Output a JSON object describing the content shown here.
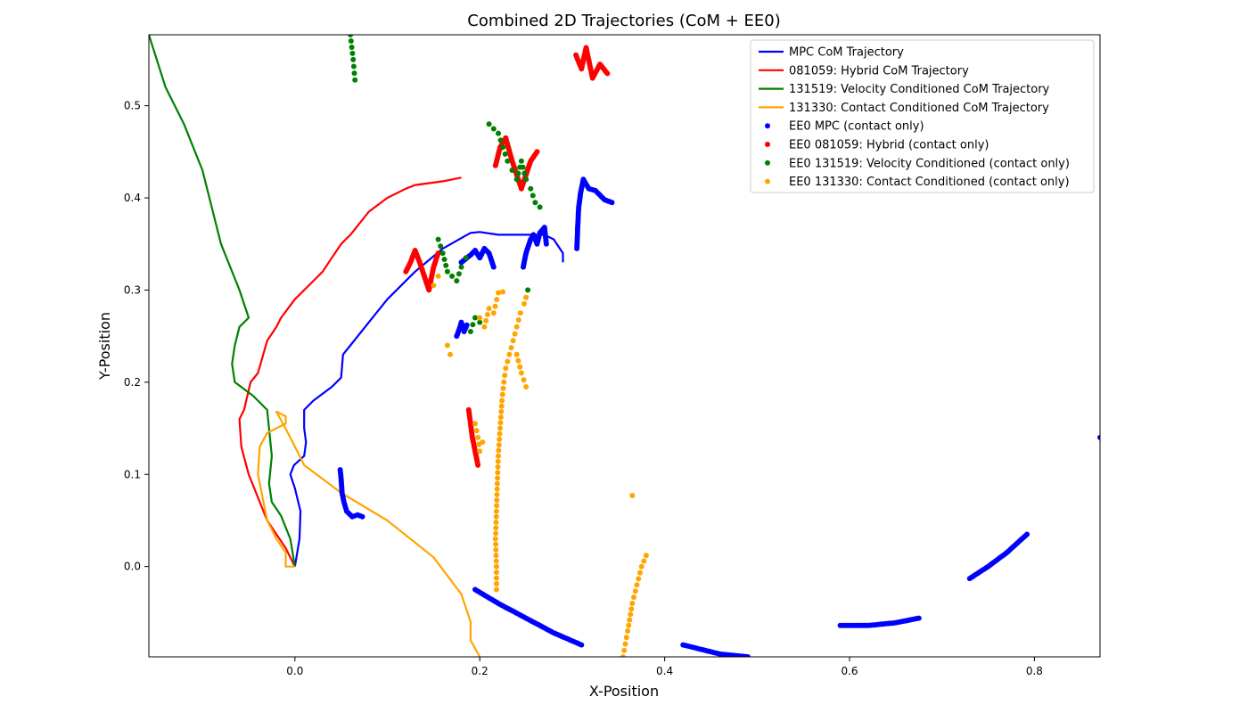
{
  "chart_data": {
    "type": "line",
    "title": "Combined 2D Trajectories (CoM + EE0)",
    "xlabel": "X-Position",
    "ylabel": "Y-Position",
    "xlim": [
      -0.158,
      0.871
    ],
    "ylim": [
      -0.098,
      0.577
    ],
    "xticks": [
      0.0,
      0.2,
      0.4,
      0.6,
      0.8
    ],
    "xtick_labels": [
      "0.0",
      "0.2",
      "0.4",
      "0.6",
      "0.8"
    ],
    "yticks": [
      0.0,
      0.1,
      0.2,
      0.3,
      0.4,
      0.5
    ],
    "ytick_labels": [
      "0.0",
      "0.1",
      "0.2",
      "0.3",
      "0.4",
      "0.5"
    ],
    "grid": false,
    "legend_position": "top-right",
    "line_series": [
      {
        "name": "MPC CoM Trajectory",
        "color": "#0000ff",
        "x": [
          0.0,
          0.005,
          0.006,
          0.0,
          -0.005,
          -0.001,
          0.01,
          0.012,
          0.01,
          0.01,
          0.02,
          0.04,
          0.05,
          0.052,
          0.06,
          0.08,
          0.1,
          0.13,
          0.16,
          0.19,
          0.2,
          0.22,
          0.25,
          0.27,
          0.28,
          0.29,
          0.29
        ],
        "y": [
          0.0,
          0.03,
          0.06,
          0.085,
          0.1,
          0.11,
          0.12,
          0.135,
          0.15,
          0.17,
          0.18,
          0.195,
          0.205,
          0.23,
          0.24,
          0.265,
          0.29,
          0.32,
          0.345,
          0.362,
          0.363,
          0.36,
          0.36,
          0.36,
          0.355,
          0.34,
          0.33
        ]
      },
      {
        "name": "081059: Hybrid CoM Trajectory",
        "color": "#ff0000",
        "x": [
          0.0,
          -0.01,
          -0.03,
          -0.05,
          -0.058,
          -0.06,
          -0.055,
          -0.048,
          -0.04,
          -0.03,
          -0.02,
          -0.015,
          0.0,
          0.02,
          0.03,
          0.04,
          0.05,
          0.06,
          0.08,
          0.1,
          0.12,
          0.13,
          0.16,
          0.18
        ],
        "y": [
          0.0,
          0.02,
          0.05,
          0.1,
          0.13,
          0.16,
          0.17,
          0.2,
          0.21,
          0.245,
          0.26,
          0.27,
          0.29,
          0.31,
          0.32,
          0.335,
          0.35,
          0.36,
          0.385,
          0.4,
          0.41,
          0.414,
          0.418,
          0.422
        ]
      },
      {
        "name": "131519: Velocity Conditioned CoM Trajectory",
        "color": "#008000",
        "x": [
          0.0,
          -0.005,
          -0.015,
          -0.025,
          -0.028,
          -0.025,
          -0.03,
          -0.045,
          -0.065,
          -0.068,
          -0.065,
          -0.06,
          -0.05,
          -0.06,
          -0.08,
          -0.09,
          -0.1,
          -0.12,
          -0.14,
          -0.158
        ],
        "y": [
          0.0,
          0.03,
          0.055,
          0.07,
          0.09,
          0.12,
          0.17,
          0.185,
          0.2,
          0.22,
          0.24,
          0.26,
          0.27,
          0.3,
          0.35,
          0.39,
          0.43,
          0.48,
          0.52,
          0.577
        ]
      },
      {
        "name": "131330: Contact Conditioned CoM Trajectory",
        "color": "#ffa500",
        "x": [
          0.0,
          -0.01,
          -0.01,
          -0.02,
          -0.03,
          -0.04,
          -0.038,
          -0.03,
          -0.02,
          -0.01,
          -0.01,
          -0.02,
          -0.005,
          0.01,
          0.05,
          0.1,
          0.15,
          0.18,
          0.19,
          0.19,
          0.2
        ],
        "y": [
          0.0,
          0.0,
          0.015,
          0.03,
          0.05,
          0.1,
          0.13,
          0.145,
          0.15,
          0.155,
          0.163,
          0.168,
          0.14,
          0.11,
          0.08,
          0.05,
          0.01,
          -0.03,
          -0.06,
          -0.08,
          -0.098
        ]
      }
    ],
    "scatter_series": [
      {
        "name": "EE0 MPC (contact only)",
        "color": "#0000ff",
        "clusters": [
          {
            "x": [
              0.049,
              0.05,
              0.051,
              0.053,
              0.056,
              0.062,
              0.068,
              0.073
            ],
            "y": [
              0.105,
              0.095,
              0.08,
              0.07,
              0.06,
              0.054,
              0.056,
              0.054
            ]
          },
          {
            "x": [
              0.175,
              0.178,
              0.18,
              0.183,
              0.186
            ],
            "y": [
              0.25,
              0.258,
              0.265,
              0.255,
              0.262
            ]
          },
          {
            "x": [
              0.18,
              0.19,
              0.195,
              0.2,
              0.205,
              0.21,
              0.215
            ],
            "y": [
              0.33,
              0.338,
              0.343,
              0.335,
              0.345,
              0.34,
              0.325
            ]
          },
          {
            "x": [
              0.247,
              0.25,
              0.255,
              0.258,
              0.262,
              0.265,
              0.27,
              0.272
            ],
            "y": [
              0.325,
              0.34,
              0.355,
              0.36,
              0.35,
              0.362,
              0.368,
              0.35
            ]
          },
          {
            "x": [
              0.305,
              0.306,
              0.307,
              0.309,
              0.312,
              0.318,
              0.325,
              0.335,
              0.343
            ],
            "y": [
              0.345,
              0.37,
              0.39,
              0.405,
              0.42,
              0.41,
              0.408,
              0.398,
              0.395
            ]
          },
          {
            "x": [
              0.195,
              0.22,
              0.25,
              0.28,
              0.31
            ],
            "y": [
              -0.025,
              -0.04,
              -0.056,
              -0.072,
              -0.085
            ]
          },
          {
            "x": [
              0.42,
              0.44,
              0.46,
              0.49
            ],
            "y": [
              -0.085,
              -0.09,
              -0.095,
              -0.098
            ]
          },
          {
            "x": [
              0.59,
              0.62,
              0.65,
              0.675
            ],
            "y": [
              -0.064,
              -0.064,
              -0.061,
              -0.056
            ]
          },
          {
            "x": [
              0.73,
              0.75,
              0.77,
              0.792
            ],
            "y": [
              -0.013,
              0.0,
              0.015,
              0.035
            ]
          },
          {
            "x": [
              0.871
            ],
            "y": [
              0.14
            ]
          }
        ]
      },
      {
        "name": "EE0 081059: Hybrid (contact only)",
        "color": "#ff0000",
        "clusters": [
          {
            "x": [
              0.12,
              0.125,
              0.13,
              0.135,
              0.14,
              0.145,
              0.15,
              0.155
            ],
            "y": [
              0.32,
              0.33,
              0.343,
              0.33,
              0.315,
              0.3,
              0.325,
              0.34
            ]
          },
          {
            "x": [
              0.188,
              0.19,
              0.192,
              0.195,
              0.198
            ],
            "y": [
              0.17,
              0.155,
              0.14,
              0.125,
              0.11
            ]
          },
          {
            "x": [
              0.217,
              0.222,
              0.228,
              0.235,
              0.24,
              0.245,
              0.255,
              0.262
            ],
            "y": [
              0.435,
              0.455,
              0.465,
              0.44,
              0.425,
              0.41,
              0.44,
              0.45
            ]
          },
          {
            "x": [
              0.304,
              0.31,
              0.315,
              0.322,
              0.33,
              0.338
            ],
            "y": [
              0.555,
              0.54,
              0.563,
              0.53,
              0.545,
              0.535
            ]
          }
        ]
      },
      {
        "name": "EE0 131519: Velocity Conditioned (contact only)",
        "color": "#008000",
        "x": [
          0.06,
          0.063,
          0.065,
          0.155,
          0.16,
          0.165,
          0.175,
          0.18,
          0.185,
          0.19,
          0.195,
          0.2,
          0.21,
          0.22,
          0.225,
          0.23,
          0.235,
          0.24,
          0.245,
          0.25,
          0.255,
          0.26,
          0.265,
          0.252
        ],
        "y": [
          0.577,
          0.55,
          0.528,
          0.355,
          0.34,
          0.32,
          0.31,
          0.325,
          0.335,
          0.255,
          0.27,
          0.265,
          0.48,
          0.47,
          0.455,
          0.44,
          0.43,
          0.42,
          0.44,
          0.42,
          0.41,
          0.395,
          0.39,
          0.3
        ]
      },
      {
        "name": "EE0 131330: Contact Conditioned (contact only)",
        "color": "#ffa500",
        "x": [
          0.15,
          0.155,
          0.165,
          0.168,
          0.195,
          0.198,
          0.2,
          0.203,
          0.2,
          0.205,
          0.21,
          0.215,
          0.22,
          0.225,
          0.24,
          0.245,
          0.25,
          0.218,
          0.218,
          0.217,
          0.218,
          0.219,
          0.22,
          0.222,
          0.224,
          0.226,
          0.228,
          0.232,
          0.236,
          0.24,
          0.244,
          0.248,
          0.25,
          0.365,
          0.355,
          0.36,
          0.365,
          0.37,
          0.375,
          0.38
        ],
        "y": [
          0.305,
          0.315,
          0.24,
          0.23,
          0.155,
          0.14,
          0.125,
          0.135,
          0.27,
          0.26,
          0.28,
          0.275,
          0.297,
          0.298,
          0.23,
          0.21,
          0.195,
          -0.025,
          0.0,
          0.03,
          0.06,
          0.09,
          0.12,
          0.15,
          0.18,
          0.2,
          0.215,
          0.23,
          0.245,
          0.26,
          0.275,
          0.285,
          0.292,
          0.077,
          -0.098,
          -0.07,
          -0.04,
          -0.02,
          0.0,
          0.012
        ]
      }
    ]
  }
}
